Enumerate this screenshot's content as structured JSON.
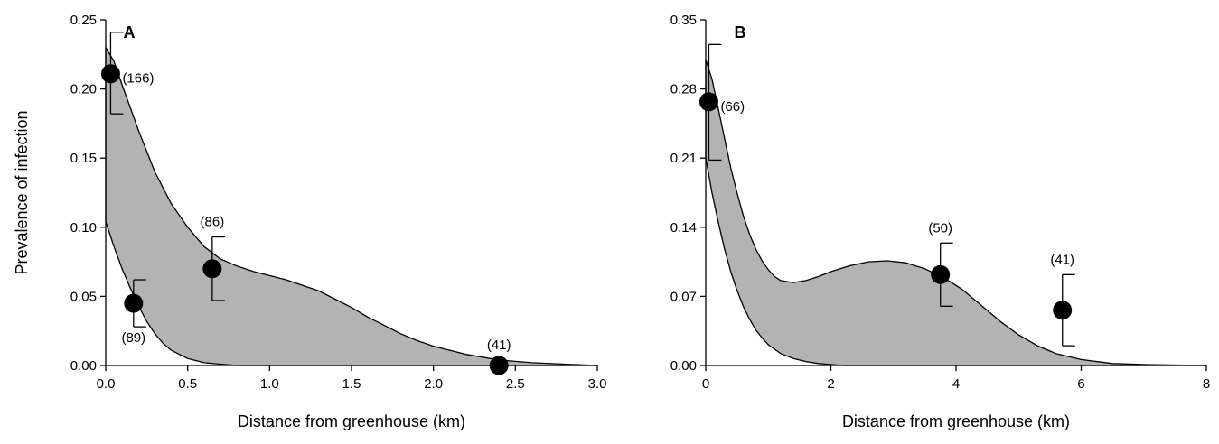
{
  "chart_data": [
    {
      "type": "scatter",
      "panel_label": "A",
      "xlabel": "Distance from greenhouse (km)",
      "ylabel": "Prevalence of infection",
      "xlim": [
        0,
        3.0
      ],
      "ylim": [
        0,
        0.25
      ],
      "x_ticks": [
        "0.0",
        "0.5",
        "1.0",
        "1.5",
        "2.0",
        "2.5",
        "3.0"
      ],
      "y_ticks": [
        "0.00",
        "0.05",
        "0.10",
        "0.15",
        "0.20",
        "0.25"
      ],
      "points": [
        {
          "x": 0.03,
          "y": 0.211,
          "err_low": 0.182,
          "err_high": 0.241,
          "label": "(166)",
          "label_pos": "right"
        },
        {
          "x": 0.17,
          "y": 0.045,
          "err_low": 0.028,
          "err_high": 0.062,
          "label": "(89)",
          "label_pos": "below"
        },
        {
          "x": 0.65,
          "y": 0.07,
          "err_low": 0.047,
          "err_high": 0.093,
          "label": "(86)",
          "label_pos": "above"
        },
        {
          "x": 2.4,
          "y": 0.0,
          "err_low": 0.0,
          "err_high": 0.0,
          "label": "(41)",
          "label_pos": "above"
        }
      ],
      "band_upper": [
        [
          0,
          0.23
        ],
        [
          0.05,
          0.22
        ],
        [
          0.1,
          0.203
        ],
        [
          0.2,
          0.17
        ],
        [
          0.3,
          0.14
        ],
        [
          0.4,
          0.117
        ],
        [
          0.5,
          0.1
        ],
        [
          0.6,
          0.086
        ],
        [
          0.7,
          0.077
        ],
        [
          0.8,
          0.072
        ],
        [
          0.9,
          0.068
        ],
        [
          1.0,
          0.065
        ],
        [
          1.1,
          0.062
        ],
        [
          1.2,
          0.058
        ],
        [
          1.3,
          0.054
        ],
        [
          1.4,
          0.048
        ],
        [
          1.5,
          0.042
        ],
        [
          1.6,
          0.035
        ],
        [
          1.7,
          0.029
        ],
        [
          1.8,
          0.023
        ],
        [
          1.9,
          0.018
        ],
        [
          2.0,
          0.014
        ],
        [
          2.2,
          0.008
        ],
        [
          2.4,
          0.004
        ],
        [
          2.6,
          0.002
        ],
        [
          2.8,
          0.001
        ],
        [
          3.0,
          0.0
        ]
      ],
      "band_lower": [
        [
          0,
          0.104
        ],
        [
          0.05,
          0.086
        ],
        [
          0.1,
          0.07
        ],
        [
          0.15,
          0.056
        ],
        [
          0.2,
          0.043
        ],
        [
          0.25,
          0.032
        ],
        [
          0.3,
          0.023
        ],
        [
          0.35,
          0.016
        ],
        [
          0.4,
          0.011
        ],
        [
          0.5,
          0.005
        ],
        [
          0.6,
          0.002
        ],
        [
          0.7,
          0.001
        ],
        [
          0.8,
          0.0
        ],
        [
          3.0,
          0.0
        ]
      ]
    },
    {
      "type": "scatter",
      "panel_label": "B",
      "xlabel": "Distance from greenhouse (km)",
      "ylabel": "",
      "xlim": [
        0,
        8
      ],
      "ylim": [
        0,
        0.35
      ],
      "x_ticks": [
        "0",
        "2",
        "4",
        "6",
        "8"
      ],
      "y_ticks": [
        "0.00",
        "0.07",
        "0.14",
        "0.21",
        "0.28",
        "0.35"
      ],
      "points": [
        {
          "x": 0.05,
          "y": 0.267,
          "err_low": 0.208,
          "err_high": 0.325,
          "label": "(66)",
          "label_pos": "right"
        },
        {
          "x": 3.75,
          "y": 0.092,
          "err_low": 0.06,
          "err_high": 0.124,
          "label": "(50)",
          "label_pos": "above"
        },
        {
          "x": 5.7,
          "y": 0.056,
          "err_low": 0.02,
          "err_high": 0.092,
          "label": "(41)",
          "label_pos": "above"
        }
      ],
      "band_upper": [
        [
          0,
          0.31
        ],
        [
          0.1,
          0.29
        ],
        [
          0.2,
          0.26
        ],
        [
          0.3,
          0.23
        ],
        [
          0.4,
          0.2
        ],
        [
          0.5,
          0.175
        ],
        [
          0.6,
          0.152
        ],
        [
          0.7,
          0.133
        ],
        [
          0.8,
          0.118
        ],
        [
          0.9,
          0.106
        ],
        [
          1.0,
          0.097
        ],
        [
          1.1,
          0.09
        ],
        [
          1.2,
          0.086
        ],
        [
          1.4,
          0.084
        ],
        [
          1.6,
          0.086
        ],
        [
          1.8,
          0.09
        ],
        [
          2.0,
          0.095
        ],
        [
          2.3,
          0.101
        ],
        [
          2.6,
          0.105
        ],
        [
          2.9,
          0.106
        ],
        [
          3.2,
          0.104
        ],
        [
          3.5,
          0.098
        ],
        [
          3.8,
          0.089
        ],
        [
          4.1,
          0.077
        ],
        [
          4.4,
          0.061
        ],
        [
          4.7,
          0.045
        ],
        [
          5.0,
          0.031
        ],
        [
          5.3,
          0.02
        ],
        [
          5.6,
          0.012
        ],
        [
          6.0,
          0.006
        ],
        [
          6.5,
          0.002
        ],
        [
          7.0,
          0.001
        ],
        [
          8.0,
          0.0
        ]
      ],
      "band_lower": [
        [
          0,
          0.21
        ],
        [
          0.1,
          0.175
        ],
        [
          0.2,
          0.145
        ],
        [
          0.3,
          0.118
        ],
        [
          0.4,
          0.095
        ],
        [
          0.5,
          0.076
        ],
        [
          0.6,
          0.06
        ],
        [
          0.7,
          0.047
        ],
        [
          0.8,
          0.036
        ],
        [
          0.9,
          0.028
        ],
        [
          1.0,
          0.021
        ],
        [
          1.2,
          0.012
        ],
        [
          1.4,
          0.007
        ],
        [
          1.6,
          0.004
        ],
        [
          1.8,
          0.002
        ],
        [
          2.0,
          0.001
        ],
        [
          2.2,
          0.0
        ],
        [
          8.0,
          0.0
        ]
      ]
    }
  ]
}
